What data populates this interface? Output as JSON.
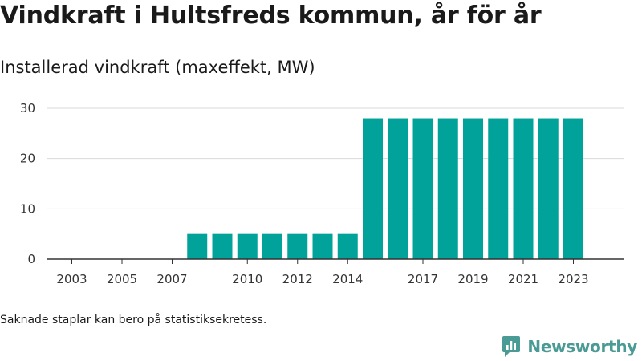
{
  "header": {
    "title": "Vindkraft i Hultsfreds kommun, år för år",
    "subtitle": "Installerad vindkraft (maxeffekt, MW)"
  },
  "footer": {
    "note": "Saknade staplar kan bero på statistiksekretess.",
    "brand_name": "Newsworthy"
  },
  "colors": {
    "bar": "#00a29a",
    "grid": "#d9d9d9",
    "axis": "#333333",
    "brand": "#4a9a95"
  },
  "icons": {
    "brand_logo": "newsworthy-logo-icon"
  },
  "chart_data": {
    "type": "bar",
    "title": "Vindkraft i Hultsfreds kommun, år för år",
    "subtitle": "Installerad vindkraft (maxeffekt, MW)",
    "categories": [
      2003,
      2004,
      2005,
      2006,
      2007,
      2008,
      2009,
      2010,
      2011,
      2012,
      2013,
      2014,
      2015,
      2016,
      2017,
      2018,
      2019,
      2020,
      2021,
      2022,
      2023
    ],
    "values": [
      0,
      0,
      0,
      0,
      0,
      5,
      5,
      5,
      5,
      5,
      5,
      5,
      28,
      28,
      28,
      28,
      28,
      28,
      28,
      28,
      28
    ],
    "x_tick_labels": [
      2003,
      2005,
      2007,
      2010,
      2012,
      2014,
      2017,
      2019,
      2021,
      2023
    ],
    "y_ticks": [
      0,
      10,
      20,
      30
    ],
    "ylim": [
      0,
      30
    ],
    "xlabel": "",
    "ylabel": "",
    "grid": true,
    "legend": "none"
  }
}
